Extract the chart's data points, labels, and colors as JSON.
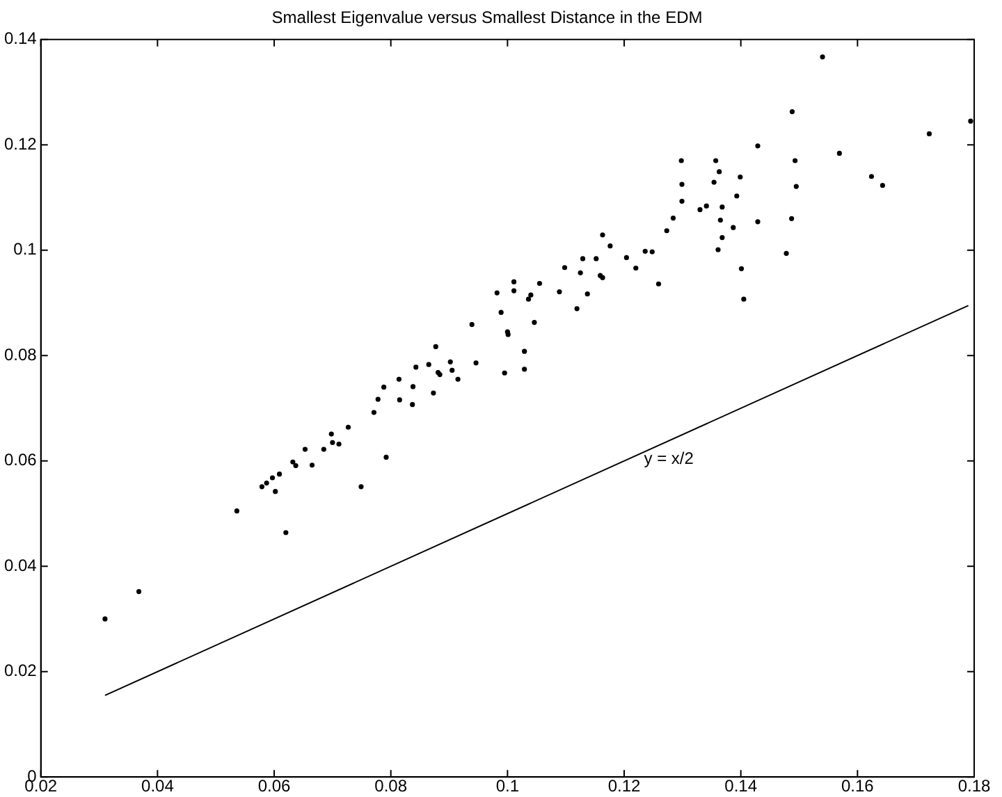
{
  "chart_data": {
    "type": "scatter",
    "title": "Smallest Eigenvalue versus Smallest Distance in the EDM",
    "xlim": [
      0.02,
      0.18
    ],
    "xticks": [
      0.02,
      0.04,
      0.06,
      0.08,
      0.1,
      0.12,
      0.14,
      0.16,
      0.18
    ],
    "ylim": [
      0,
      0.14
    ],
    "yticks": [
      0,
      0.02,
      0.04,
      0.06,
      0.08,
      0.1,
      0.12,
      0.14
    ],
    "grid": false,
    "legend": false,
    "marker": "circle",
    "series": [
      {
        "color": "#000000",
        "x": [
          0.031,
          0.0368,
          0.0536,
          0.0579,
          0.0587,
          0.0597,
          0.0602,
          0.0609,
          0.062,
          0.0632,
          0.0637,
          0.0653,
          0.0665,
          0.0685,
          0.0698,
          0.07,
          0.0711,
          0.0727,
          0.0749,
          0.0792,
          0.0771,
          0.0778,
          0.0788,
          0.0815,
          0.0814,
          0.0837,
          0.0838,
          0.0843,
          0.0865,
          0.0873,
          0.0877,
          0.0881,
          0.0884,
          0.0902,
          0.0905,
          0.0915,
          0.0939,
          0.0946,
          0.0982,
          0.0989,
          0.0995,
          0.1,
          0.1001,
          0.1011,
          0.1011,
          0.1029,
          0.1029,
          0.1036,
          0.104,
          0.1046,
          0.1055,
          0.1089,
          0.1098,
          0.1119,
          0.1125,
          0.1129,
          0.1137,
          0.1152,
          0.1159,
          0.1163,
          0.1163,
          0.1176,
          0.1204,
          0.122,
          0.1236,
          0.1248,
          0.1259,
          0.1273,
          0.1284,
          0.1298,
          0.1299,
          0.1299,
          0.133,
          0.1341,
          0.1357,
          0.1363,
          0.1354,
          0.1368,
          0.1365,
          0.1368,
          0.1361,
          0.1387,
          0.1393,
          0.1399,
          0.1401,
          0.1405,
          0.1429,
          0.1478,
          0.1487,
          0.1493,
          0.1495,
          0.1569,
          0.1624,
          0.1643,
          0.154,
          0.1488,
          0.1429,
          0.1723,
          0.1794
        ],
        "values": [
          0.03,
          0.0352,
          0.0505,
          0.0551,
          0.0558,
          0.0568,
          0.0542,
          0.0575,
          0.0464,
          0.0598,
          0.0591,
          0.0622,
          0.0592,
          0.0622,
          0.0651,
          0.0635,
          0.0632,
          0.0664,
          0.0551,
          0.0607,
          0.0692,
          0.0717,
          0.074,
          0.0716,
          0.0755,
          0.0707,
          0.0741,
          0.0778,
          0.0783,
          0.0729,
          0.0817,
          0.0768,
          0.0764,
          0.0788,
          0.0772,
          0.0755,
          0.0859,
          0.0786,
          0.0919,
          0.0882,
          0.0767,
          0.0845,
          0.084,
          0.094,
          0.0923,
          0.0808,
          0.0774,
          0.0907,
          0.0915,
          0.0863,
          0.0937,
          0.0921,
          0.0967,
          0.0889,
          0.0957,
          0.0984,
          0.0917,
          0.0984,
          0.0952,
          0.0948,
          0.1029,
          0.1008,
          0.0986,
          0.0966,
          0.0998,
          0.0997,
          0.0936,
          0.1037,
          0.1061,
          0.117,
          0.1125,
          0.1093,
          0.1077,
          0.1084,
          0.117,
          0.1149,
          0.1129,
          0.1082,
          0.1057,
          0.1024,
          0.1001,
          0.1043,
          0.1103,
          0.1139,
          0.0965,
          0.0907,
          0.1054,
          0.0994,
          0.106,
          0.117,
          0.1121,
          0.1184,
          0.114,
          0.1123,
          0.1367,
          0.1263,
          0.1198,
          0.1221,
          0.1245
        ]
      },
      {
        "type": "line",
        "color": "#000000",
        "marker": "none",
        "x": [
          0.031,
          0.179
        ],
        "values": [
          0.0155,
          0.0895
        ]
      }
    ],
    "annotations": [
      {
        "text": "y = x/2",
        "x": 0.1234,
        "y": 0.0603
      }
    ]
  }
}
